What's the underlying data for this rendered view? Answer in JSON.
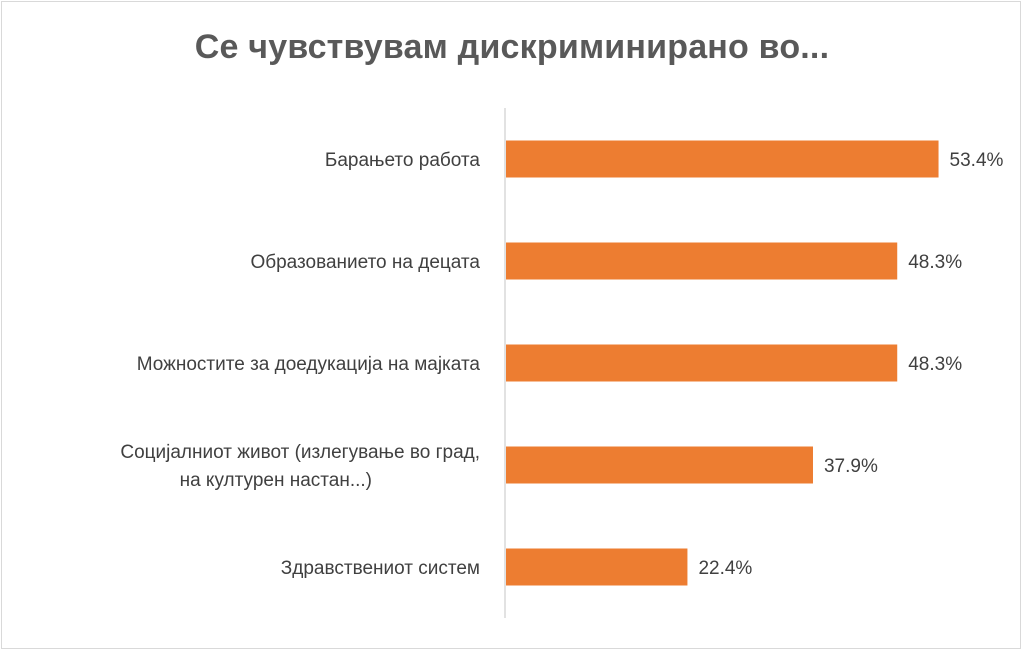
{
  "chart_data": {
    "type": "bar",
    "orientation": "horizontal",
    "title": "Се чувствувам дискриминирано во...",
    "categories": [
      [
        "Барањето работа"
      ],
      [
        "Образованието на децата"
      ],
      [
        "Можностите за доедукација на мајката"
      ],
      [
        "Социјалниот живот (излегување во град,",
        "на културен настан...)"
      ],
      [
        "Здравствениот систем"
      ]
    ],
    "values": [
      53.4,
      48.3,
      48.3,
      37.9,
      22.4
    ],
    "value_labels": [
      "53.4%",
      "48.3%",
      "48.3%",
      "37.9%",
      "22.4%"
    ],
    "value_unit": "%",
    "bar_color": "#ED7D31",
    "axis_color": "#d9d9d9",
    "xlim": [
      0,
      60
    ],
    "grid": false,
    "legend": "none"
  }
}
